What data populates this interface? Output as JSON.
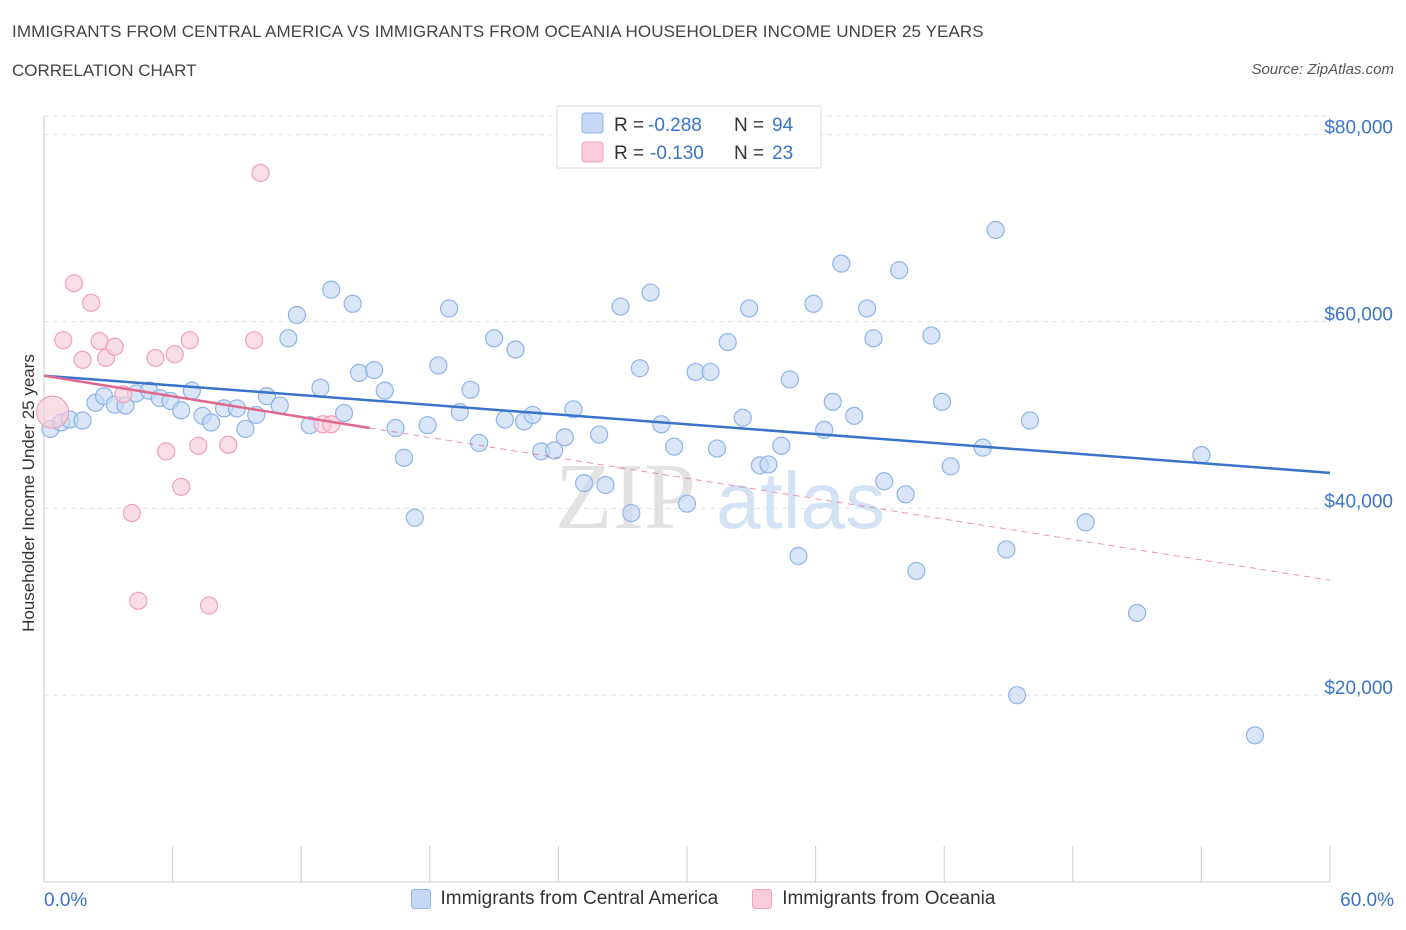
{
  "chart_data": {
    "type": "scatter",
    "title": "IMMIGRANTS FROM CENTRAL AMERICA VS IMMIGRANTS FROM OCEANIA HOUSEHOLDER INCOME UNDER 25 YEARS",
    "subtitle": "CORRELATION CHART",
    "source": "Source: ZipAtlas.com",
    "xlabel": "",
    "ylabel": "Householder Income Under 25 years",
    "xlim": [
      0,
      60
    ],
    "ylim": [
      0,
      82000
    ],
    "x_tick_labels": {
      "left": "0.0%",
      "right": "60.0%"
    },
    "y_ticks": [
      {
        "value": 20000,
        "label": "$20,000"
      },
      {
        "value": 40000,
        "label": "$40,000"
      },
      {
        "value": 60000,
        "label": "$60,000"
      },
      {
        "value": 80000,
        "label": "$80,000"
      }
    ],
    "grid": true,
    "watermark": {
      "zip": "ZIP",
      "atlas": "atlas"
    },
    "legend_box": [
      {
        "r_label": "R =",
        "r_value": "-0.288",
        "n_label": "N =",
        "n_value": "94"
      },
      {
        "r_label": "R =",
        "r_value": "-0.130",
        "n_label": "N =",
        "n_value": "23"
      }
    ],
    "series": [
      {
        "name": "Immigrants from Central America",
        "color": "#8fb4e8",
        "fill": "#c5d9f5",
        "line_color": "#3a74c8",
        "trend": {
          "x0": 0,
          "y0": 54200,
          "x1": 60,
          "y1": 43800
        },
        "points": [
          [
            0.3,
            48500
          ],
          [
            0.8,
            49200
          ],
          [
            1.2,
            49500
          ],
          [
            1.8,
            49400
          ],
          [
            2.4,
            51300
          ],
          [
            2.8,
            52000
          ],
          [
            3.3,
            51100
          ],
          [
            3.8,
            51000
          ],
          [
            4.3,
            52300
          ],
          [
            4.9,
            52600
          ],
          [
            5.4,
            51800
          ],
          [
            5.9,
            51500
          ],
          [
            6.4,
            50500
          ],
          [
            6.9,
            52600
          ],
          [
            7.4,
            49900
          ],
          [
            7.8,
            49200
          ],
          [
            8.4,
            50700
          ],
          [
            9.0,
            50700
          ],
          [
            9.4,
            48500
          ],
          [
            9.9,
            50000
          ],
          [
            10.4,
            52000
          ],
          [
            11.0,
            51000
          ],
          [
            11.4,
            58200
          ],
          [
            11.8,
            60700
          ],
          [
            12.4,
            48900
          ],
          [
            12.9,
            52900
          ],
          [
            13.4,
            63400
          ],
          [
            14.0,
            50200
          ],
          [
            14.4,
            61900
          ],
          [
            14.7,
            54500
          ],
          [
            15.4,
            54800
          ],
          [
            15.9,
            52600
          ],
          [
            16.4,
            48600
          ],
          [
            16.8,
            45400
          ],
          [
            17.3,
            39000
          ],
          [
            17.9,
            48900
          ],
          [
            18.4,
            55300
          ],
          [
            18.9,
            61400
          ],
          [
            19.4,
            50300
          ],
          [
            19.9,
            52700
          ],
          [
            20.3,
            47000
          ],
          [
            21.0,
            58200
          ],
          [
            21.5,
            49500
          ],
          [
            22.0,
            57000
          ],
          [
            22.4,
            49300
          ],
          [
            22.8,
            50000
          ],
          [
            23.2,
            46100
          ],
          [
            23.8,
            46200
          ],
          [
            24.3,
            47600
          ],
          [
            24.7,
            50600
          ],
          [
            25.2,
            42700
          ],
          [
            25.9,
            47900
          ],
          [
            26.2,
            42500
          ],
          [
            26.9,
            61600
          ],
          [
            27.4,
            39500
          ],
          [
            27.8,
            55000
          ],
          [
            28.3,
            63100
          ],
          [
            28.8,
            49000
          ],
          [
            29.4,
            46600
          ],
          [
            30.0,
            40500
          ],
          [
            30.4,
            54600
          ],
          [
            31.1,
            54600
          ],
          [
            31.4,
            46400
          ],
          [
            31.9,
            57800
          ],
          [
            32.6,
            49700
          ],
          [
            32.9,
            61400
          ],
          [
            33.4,
            44600
          ],
          [
            33.8,
            44700
          ],
          [
            34.4,
            46700
          ],
          [
            34.8,
            53800
          ],
          [
            35.2,
            34900
          ],
          [
            35.9,
            61900
          ],
          [
            36.4,
            48400
          ],
          [
            36.8,
            51400
          ],
          [
            37.2,
            66200
          ],
          [
            37.8,
            49900
          ],
          [
            38.4,
            61400
          ],
          [
            38.7,
            58200
          ],
          [
            39.2,
            42900
          ],
          [
            39.9,
            65500
          ],
          [
            40.2,
            41500
          ],
          [
            40.7,
            33300
          ],
          [
            41.4,
            58500
          ],
          [
            41.9,
            51400
          ],
          [
            42.3,
            44500
          ],
          [
            43.8,
            46500
          ],
          [
            44.4,
            69800
          ],
          [
            44.9,
            35600
          ],
          [
            45.4,
            20000
          ],
          [
            46.0,
            49400
          ],
          [
            48.6,
            38500
          ],
          [
            51.0,
            28800
          ],
          [
            54.0,
            45700
          ],
          [
            56.5,
            15700
          ]
        ]
      },
      {
        "name": "Immigrants from Oceania",
        "color": "#f0a0b8",
        "fill": "#f8cdd9",
        "line_color": "#e0688f",
        "trend": {
          "x0": 0,
          "y0": 54200,
          "x1": 15.2,
          "y1": 48600
        },
        "trend_dashed": {
          "x0": 15.2,
          "y0": 48600,
          "x1": 60,
          "y1": 32300
        },
        "points": [
          [
            0.4,
            50300
          ],
          [
            0.9,
            58000
          ],
          [
            1.4,
            64100
          ],
          [
            1.8,
            55900
          ],
          [
            2.2,
            62000
          ],
          [
            2.6,
            57900
          ],
          [
            2.9,
            56100
          ],
          [
            3.3,
            57300
          ],
          [
            3.7,
            52200
          ],
          [
            4.1,
            39500
          ],
          [
            4.4,
            30100
          ],
          [
            5.2,
            56100
          ],
          [
            5.7,
            46100
          ],
          [
            6.1,
            56500
          ],
          [
            6.4,
            42300
          ],
          [
            6.8,
            58000
          ],
          [
            7.2,
            46700
          ],
          [
            7.7,
            29600
          ],
          [
            8.6,
            46800
          ],
          [
            9.8,
            58000
          ],
          [
            10.1,
            75900
          ],
          [
            13.0,
            49000
          ],
          [
            13.4,
            49000
          ]
        ]
      }
    ]
  }
}
